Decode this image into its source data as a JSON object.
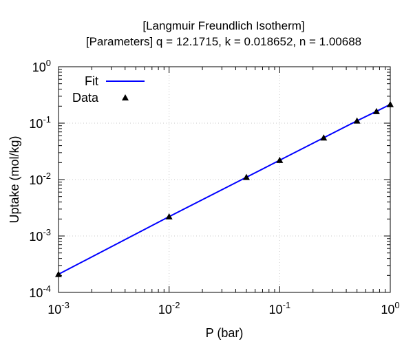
{
  "chart_data": {
    "type": "scatter",
    "title": "[Langmuir Freundlich Isotherm]",
    "subtitle": "[Parameters] q = 12.1715, k = 0.018652, n = 1.00688",
    "xlabel": "P (bar)",
    "ylabel": "Uptake (mol/kg)",
    "xscale": "log",
    "yscale": "log",
    "xlim": [
      0.001,
      1
    ],
    "ylim": [
      0.0001,
      1
    ],
    "grid": true,
    "legend_position": "top-left",
    "x_ticks": [
      {
        "value": 0.001,
        "base": "10",
        "exp": "-3"
      },
      {
        "value": 0.01,
        "base": "10",
        "exp": "-2"
      },
      {
        "value": 0.1,
        "base": "10",
        "exp": "-1"
      },
      {
        "value": 1,
        "base": "10",
        "exp": "0"
      }
    ],
    "y_ticks": [
      {
        "value": 0.0001,
        "base": "10",
        "exp": "-4"
      },
      {
        "value": 0.001,
        "base": "10",
        "exp": "-3"
      },
      {
        "value": 0.01,
        "base": "10",
        "exp": "-2"
      },
      {
        "value": 0.1,
        "base": "10",
        "exp": "-1"
      },
      {
        "value": 1,
        "base": "10",
        "exp": "0"
      }
    ],
    "series": [
      {
        "name": "Fit",
        "kind": "line",
        "color": "#0000ff",
        "x": [
          0.001,
          0.01,
          0.05,
          0.1,
          0.25,
          0.5,
          0.75,
          1
        ],
        "y": [
          0.00021,
          0.0022,
          0.011,
          0.022,
          0.055,
          0.11,
          0.162,
          0.215
        ]
      },
      {
        "name": "Data",
        "kind": "scatter",
        "marker": "triangle",
        "color": "#000000",
        "x": [
          0.001,
          0.01,
          0.05,
          0.1,
          0.25,
          0.5,
          0.75,
          1
        ],
        "y": [
          0.00021,
          0.0022,
          0.011,
          0.022,
          0.055,
          0.11,
          0.162,
          0.215
        ]
      }
    ]
  }
}
